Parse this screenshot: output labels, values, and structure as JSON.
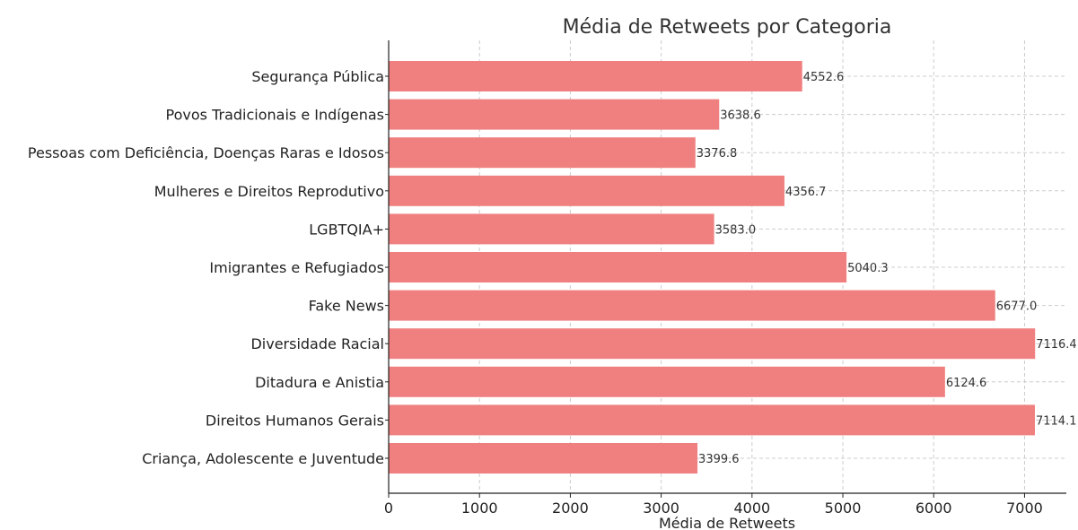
{
  "chart_data": {
    "type": "bar",
    "orientation": "horizontal",
    "title": "Média de Retweets por Categoria",
    "xlabel": "Média de Retweets",
    "ylabel": "",
    "xlim": [
      0,
      7460
    ],
    "xticks": [
      0,
      1000,
      2000,
      3000,
      4000,
      5000,
      6000,
      7000
    ],
    "grid": true,
    "bar_color": "#f08080",
    "categories": [
      "Criança, Adolescente e Juventude",
      "Direitos Humanos Gerais",
      "Ditadura e Anistia",
      "Diversidade Racial",
      "Fake News",
      "Imigrantes e Refugiados",
      "LGBTQIA+",
      "Mulheres e Direitos Reprodutivo",
      "Pessoas com Deficiência, Doenças Raras e Idosos",
      "Povos Tradicionais e Indígenas",
      "Segurança Pública"
    ],
    "values": [
      3399.6,
      7114.1,
      6124.6,
      7116.4,
      6677.0,
      5040.3,
      3583.0,
      4356.7,
      3376.8,
      3638.6,
      4552.6
    ],
    "value_labels": [
      "3399.6",
      "7114.1",
      "6124.6",
      "7116.4",
      "6677.0",
      "5040.3",
      "3583.0",
      "4356.7",
      "3376.8",
      "3638.6",
      "4552.6"
    ]
  }
}
